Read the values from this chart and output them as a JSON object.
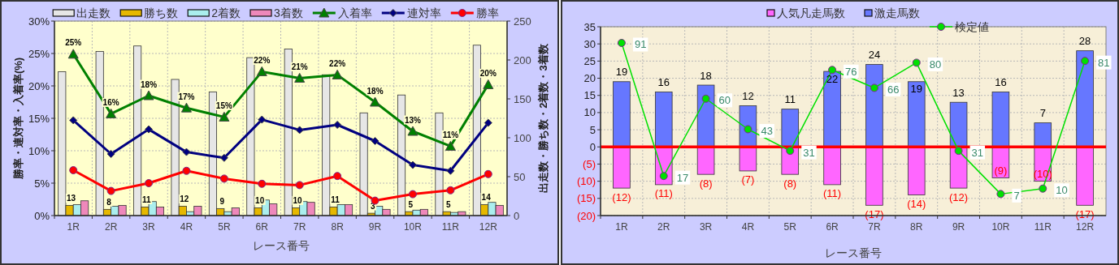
{
  "chart_data": [
    {
      "type": "bar",
      "categories": [
        "1R",
        "2R",
        "3R",
        "4R",
        "5R",
        "6R",
        "7R",
        "8R",
        "9R",
        "10R",
        "11R",
        "12R"
      ],
      "xlabel": "レース番号",
      "ylabel": "勝率・連対率・入着率(%)",
      "y2label": "出走数・勝ち数・2着数・3着数",
      "ylim": [
        0,
        30
      ],
      "yticks": [
        {
          "value": 0,
          "label": "0%"
        },
        {
          "value": 5,
          "label": "5%"
        },
        {
          "value": 10,
          "label": "10%"
        },
        {
          "value": 15,
          "label": "15%"
        },
        {
          "value": 20,
          "label": "20%"
        },
        {
          "value": 25,
          "label": "25%"
        },
        {
          "value": 30,
          "label": "30%"
        }
      ],
      "y2lim": [
        0,
        250
      ],
      "y2ticks": [
        0,
        50,
        100,
        150,
        200,
        250
      ],
      "grid": true,
      "legend": "top",
      "series": [
        {
          "name": "出走数",
          "color": "#e6e6e6",
          "axis": "y2",
          "values": [
            185,
            211,
            218,
            175,
            159,
            203,
            214,
            181,
            132,
            155,
            132,
            219
          ]
        },
        {
          "name": "勝ち数",
          "color": "#e6b800",
          "axis": "y2",
          "values": [
            13,
            8,
            11,
            12,
            9,
            10,
            10,
            11,
            3,
            5,
            5,
            14
          ],
          "value_labels": [
            "13",
            "8",
            "11",
            "12",
            "9",
            "10",
            "10",
            "11",
            "3",
            "5",
            "5",
            "14"
          ]
        },
        {
          "name": "2着数",
          "color": "#aaeeee",
          "axis": "y2",
          "values": [
            14,
            12,
            18,
            5,
            5,
            20,
            18,
            14,
            12,
            7,
            4,
            17
          ]
        },
        {
          "name": "3着数",
          "color": "#ee88bb",
          "axis": "y2",
          "values": [
            19,
            13,
            11,
            12,
            10,
            15,
            17,
            14,
            8,
            8,
            5,
            13
          ]
        },
        {
          "name": "入着率",
          "type": "line",
          "color": "#008000",
          "marker": "triangle",
          "values": [
            24.9,
            15.7,
            18.5,
            16.6,
            15.2,
            22.2,
            21.2,
            21.7,
            17.5,
            13.0,
            10.7,
            20.2
          ],
          "value_labels": [
            "25%",
            "16%",
            "18%",
            "17%",
            "15%",
            "22%",
            "21%",
            "22%",
            "18%",
            "13%",
            "11%",
            "20%"
          ]
        },
        {
          "name": "連対率",
          "type": "line",
          "color": "#000080",
          "marker": "diamond",
          "values": [
            14.7,
            9.5,
            13.3,
            9.8,
            8.9,
            14.8,
            13.2,
            14.0,
            11.5,
            7.8,
            6.9,
            14.3
          ]
        },
        {
          "name": "勝率",
          "type": "line",
          "color": "#ff0000",
          "marker": "circle",
          "values": [
            7.0,
            3.8,
            5.0,
            6.9,
            5.7,
            4.9,
            4.7,
            6.1,
            2.3,
            3.3,
            3.9,
            6.4
          ]
        }
      ]
    },
    {
      "type": "bar",
      "stacked": true,
      "categories": [
        "1R",
        "2R",
        "3R",
        "4R",
        "5R",
        "6R",
        "7R",
        "8R",
        "9R",
        "10R",
        "11R",
        "12R"
      ],
      "xlabel": "レース番号",
      "ylim": [
        -20,
        35
      ],
      "yticks": [
        {
          "value": -20,
          "label": "(20)"
        },
        {
          "value": -15,
          "label": "(15)"
        },
        {
          "value": -10,
          "label": "(10)"
        },
        {
          "value": -5,
          "label": "(5)"
        },
        0,
        5,
        10,
        15,
        20,
        25,
        30,
        35
      ],
      "y2lim": [
        -5,
        100
      ],
      "grid": true,
      "legend": "top",
      "ref_lines": [
        {
          "axis": "y",
          "value": 0,
          "color": "#ff0000"
        }
      ],
      "series": [
        {
          "name": "人気凡走馬数",
          "color": "#ff66ff",
          "values": [
            -12,
            -11,
            -8,
            -7,
            -8,
            -11,
            -17,
            -14,
            -12,
            -9,
            -10,
            -17
          ],
          "value_labels": [
            "(12)",
            "(11)",
            "(8)",
            "(7)",
            "(8)",
            "(11)",
            "(17)",
            "(14)",
            "(12)",
            "(9)",
            "(10)",
            "(17)"
          ]
        },
        {
          "name": "激走馬数",
          "color": "#6677ff",
          "values": [
            19,
            16,
            18,
            12,
            11,
            22,
            24,
            19,
            13,
            16,
            7,
            28
          ],
          "value_labels": [
            "19",
            "16",
            "18",
            "12",
            "11",
            "22",
            "24",
            "19",
            "13",
            "16",
            "7",
            "28"
          ]
        },
        {
          "name": "検定値",
          "type": "line",
          "color": "#00e000",
          "axis": "y2",
          "marker": "circle",
          "values": [
            91,
            17,
            60,
            43,
            31,
            76,
            66,
            80,
            31,
            7,
            10,
            81
          ],
          "value_labels": [
            "91",
            "17",
            "60",
            "43",
            "31",
            "76",
            "66",
            "80",
            "31",
            "7",
            "10",
            "81"
          ]
        }
      ]
    }
  ]
}
